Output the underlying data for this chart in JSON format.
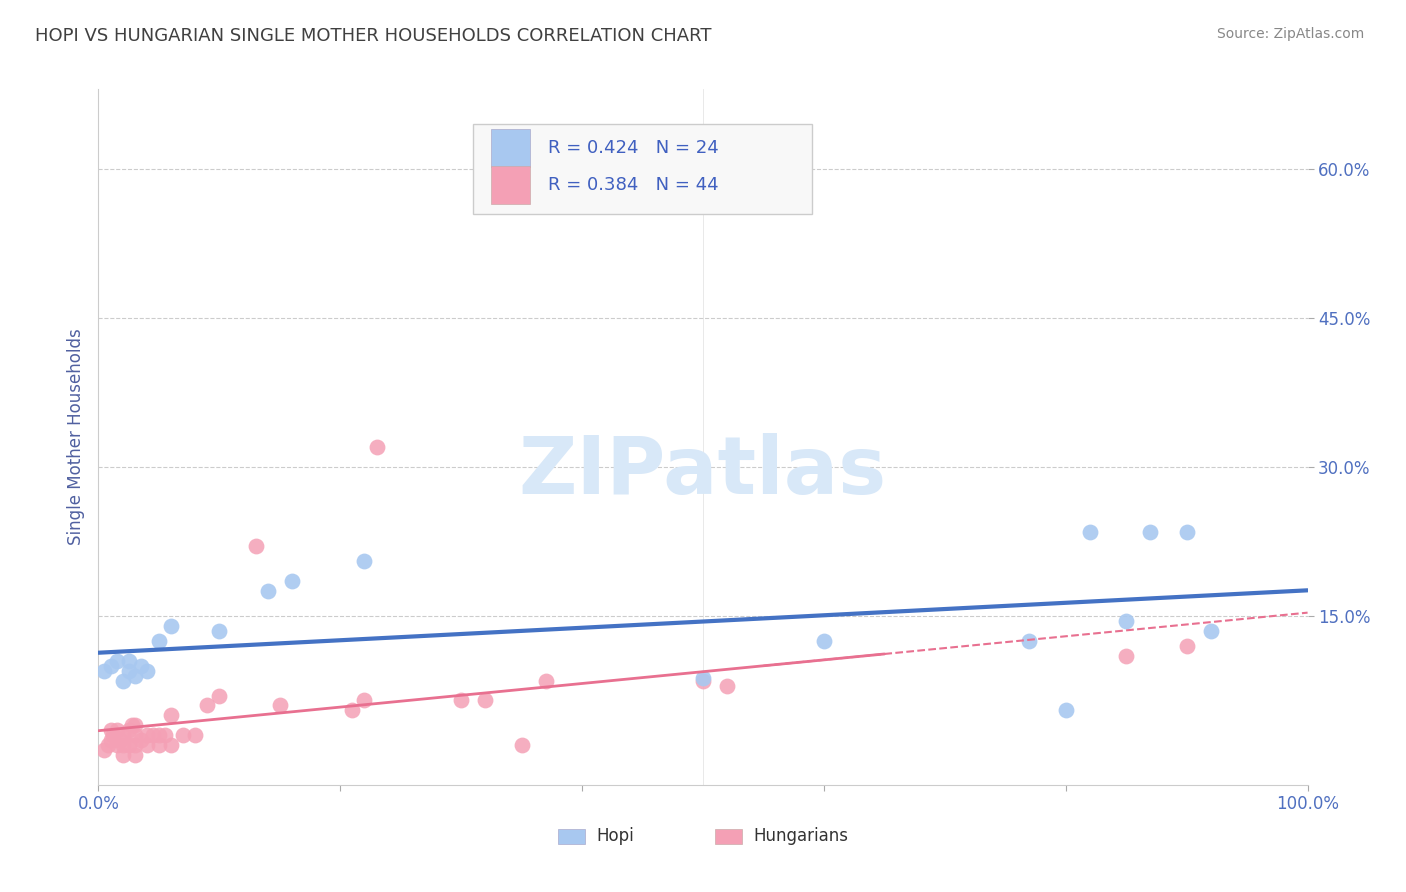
{
  "title": "HOPI VS HUNGARIAN SINGLE MOTHER HOUSEHOLDS CORRELATION CHART",
  "source": "Source: ZipAtlas.com",
  "ylabel": "Single Mother Households",
  "xlim": [
    0,
    1.0
  ],
  "ylim": [
    -0.02,
    0.68
  ],
  "xticks": [
    0.0,
    0.2,
    0.4,
    0.6,
    0.8,
    1.0
  ],
  "xtick_labels": [
    "0.0%",
    "",
    "",
    "",
    "",
    "100.0%"
  ],
  "yticks": [
    0.15,
    0.3,
    0.45,
    0.6
  ],
  "ytick_labels": [
    "15.0%",
    "30.0%",
    "45.0%",
    "60.0%"
  ],
  "hopi_color": "#a8c8f0",
  "hungarian_color": "#f4a0b5",
  "hopi_line_color": "#4472c4",
  "hungarian_line_color": "#e87090",
  "hopi_R": 0.424,
  "hopi_N": 24,
  "hungarian_R": 0.384,
  "hungarian_N": 44,
  "watermark": "ZIPatlas",
  "watermark_color": "#d8e8f8",
  "hopi_points_x": [
    0.005,
    0.01,
    0.015,
    0.02,
    0.025,
    0.025,
    0.03,
    0.035,
    0.04,
    0.05,
    0.06,
    0.1,
    0.14,
    0.16,
    0.22,
    0.5,
    0.6,
    0.77,
    0.8,
    0.82,
    0.85,
    0.87,
    0.9,
    0.92
  ],
  "hopi_points_y": [
    0.095,
    0.1,
    0.105,
    0.085,
    0.095,
    0.105,
    0.09,
    0.1,
    0.095,
    0.125,
    0.14,
    0.135,
    0.175,
    0.185,
    0.205,
    0.088,
    0.125,
    0.125,
    0.055,
    0.235,
    0.145,
    0.235,
    0.235,
    0.135
  ],
  "hungarian_points_x": [
    0.005,
    0.008,
    0.01,
    0.01,
    0.012,
    0.015,
    0.015,
    0.018,
    0.02,
    0.02,
    0.02,
    0.025,
    0.025,
    0.028,
    0.03,
    0.03,
    0.03,
    0.03,
    0.035,
    0.04,
    0.04,
    0.045,
    0.05,
    0.05,
    0.055,
    0.06,
    0.06,
    0.07,
    0.08,
    0.09,
    0.1,
    0.13,
    0.15,
    0.21,
    0.22,
    0.23,
    0.3,
    0.32,
    0.35,
    0.37,
    0.5,
    0.52,
    0.85,
    0.9
  ],
  "hungarian_points_y": [
    0.015,
    0.02,
    0.025,
    0.035,
    0.03,
    0.02,
    0.035,
    0.025,
    0.01,
    0.02,
    0.03,
    0.02,
    0.035,
    0.04,
    0.01,
    0.02,
    0.03,
    0.04,
    0.025,
    0.02,
    0.03,
    0.03,
    0.02,
    0.03,
    0.03,
    0.02,
    0.05,
    0.03,
    0.03,
    0.06,
    0.07,
    0.22,
    0.06,
    0.055,
    0.065,
    0.32,
    0.065,
    0.065,
    0.02,
    0.085,
    0.085,
    0.08,
    0.11,
    0.12
  ],
  "grid_color": "#cccccc",
  "title_color": "#404040",
  "tick_label_color": "#5070c0"
}
